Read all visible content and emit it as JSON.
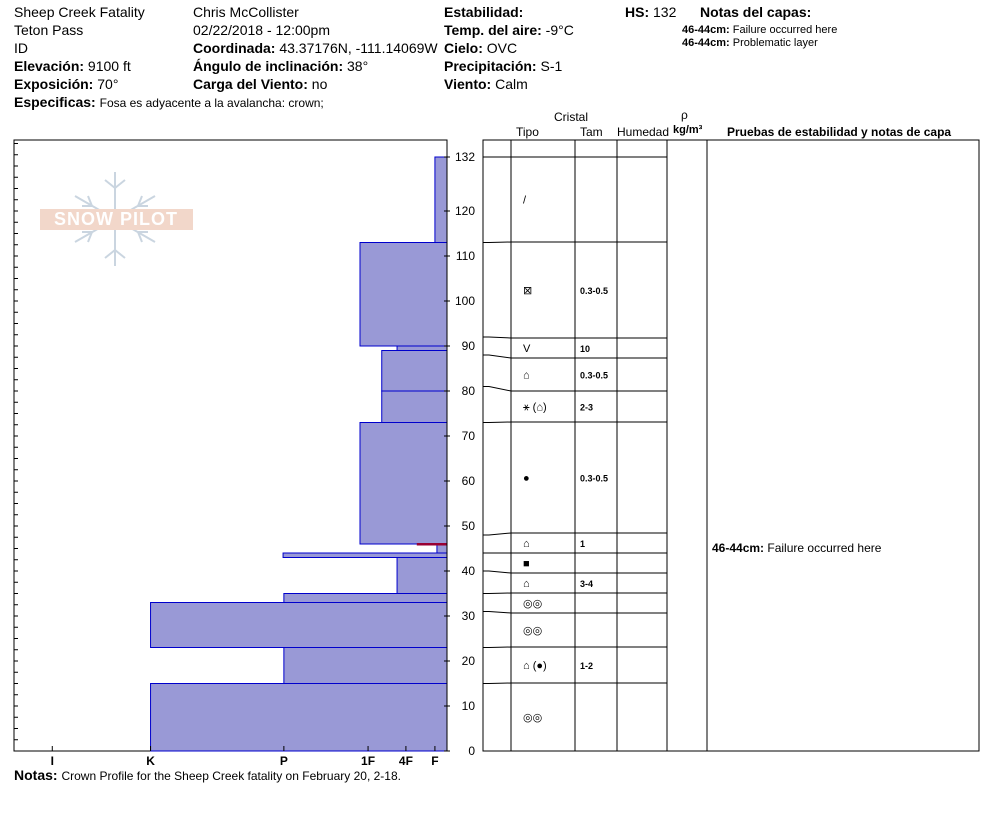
{
  "header": {
    "title": "Sheep Creek Fatality",
    "location": "Teton Pass",
    "state": "ID",
    "elevation_label": "Elevación:",
    "elevation": "9100 ft",
    "aspect_label": "Exposición:",
    "aspect": "70°",
    "specifics_label": "Especificas:",
    "specifics": "Fosa es adyacente a la avalancha: crown;",
    "observer": "Chris McCollister",
    "datetime": "02/22/2018 - 12:00pm",
    "coord_label": "Coordinada:",
    "coord": "43.37176N, -111.14069W",
    "slope_label": "Ángulo de inclinación:",
    "slope": "38°",
    "wind_load_label": "Carga del Viento:",
    "wind_load": "no",
    "stability_label": "Estabilidad:",
    "stability": "",
    "air_temp_label": "Temp. del aire:",
    "air_temp": "-9°C",
    "sky_label": "Cielo:",
    "sky": "OVC",
    "precip_label": "Precipitación:",
    "precip": "S-1",
    "wind_label": "Viento:",
    "wind": "Calm",
    "hs_label": "HS:",
    "hs": "132",
    "layer_notes_label": "Notas del capas:",
    "layer_notes": [
      {
        "range": "46-44cm:",
        "text": "Failure occurred here"
      },
      {
        "range": "46-44cm:",
        "text": "Problematic layer"
      }
    ]
  },
  "logo_text": "SNOW PILOT",
  "columns": {
    "crystal": "Cristal",
    "type": "Tipo",
    "size": "Tam",
    "moisture": "Humedad",
    "density_symbol": "ρ",
    "density_unit": "kg/m³",
    "tests": "Pruebas de estabilidad y notas de capa"
  },
  "test_notes": [
    {
      "range": "46-44cm:",
      "text": "Failure occurred here",
      "depth": 45
    }
  ],
  "notes_label": "Notas:",
  "notes": "Crown Profile for the Sheep Creek fatality on February 20, 2-18.",
  "colors": {
    "bar_fill": "#9999d6",
    "bar_stroke": "#0000cc",
    "failure_line": "#990033"
  },
  "chart_data": {
    "type": "bar",
    "orientation": "horizontal",
    "title": "",
    "xlabel": "",
    "ylabel": "",
    "y_unit": "cm",
    "ylim": [
      0,
      136
    ],
    "y_ticks": [
      0,
      10,
      20,
      30,
      40,
      50,
      60,
      70,
      80,
      90,
      100,
      110,
      120,
      132
    ],
    "x_categories": [
      "I",
      "K",
      "P",
      "1F",
      "4F",
      "F"
    ],
    "x_positions": [
      9.5,
      33.9,
      67.0,
      87.9,
      97.3,
      104.5
    ],
    "x_max": 107.5,
    "hand_hardness_layers": [
      {
        "bottom": 0,
        "top": 15,
        "hardness": 33.9
      },
      {
        "bottom": 15,
        "top": 23,
        "hardness": 67.0
      },
      {
        "bottom": 23,
        "top": 33,
        "hardness": 33.9
      },
      {
        "bottom": 33,
        "top": 35,
        "hardness": 67.0
      },
      {
        "bottom": 35,
        "top": 43,
        "hardness": 95.1
      },
      {
        "bottom": 43,
        "top": 44,
        "hardness": 66.8
      },
      {
        "bottom": 44,
        "top": 46,
        "hardness": 105.0
      },
      {
        "bottom": 46,
        "top": 73,
        "hardness": 85.9
      },
      {
        "bottom": 73,
        "top": 80,
        "hardness": 91.3
      },
      {
        "bottom": 80,
        "top": 89,
        "hardness": 91.3
      },
      {
        "bottom": 89,
        "top": 90,
        "hardness": 95.1
      },
      {
        "bottom": 90,
        "top": 113,
        "hardness": 85.9
      },
      {
        "bottom": 113,
        "top": 132,
        "hardness": 104.5
      }
    ],
    "failure_layer": [
      44,
      46
    ]
  },
  "layers": [
    {
      "top": 132,
      "bottom": 113,
      "type": "/",
      "size": ""
    },
    {
      "top": 113,
      "bottom": 92,
      "type": "⊠",
      "size": "0.3-0.5"
    },
    {
      "top": 92,
      "bottom": 88,
      "type": "V",
      "size": "10"
    },
    {
      "top": 88,
      "bottom": 81,
      "type": "⌂",
      "size": "0.3-0.5"
    },
    {
      "top": 81,
      "bottom": 73,
      "type": "⚹ (⌂)",
      "size": "2-3"
    },
    {
      "top": 73,
      "bottom": 48,
      "type": "●",
      "size": "0.3-0.5"
    },
    {
      "top": 48,
      "bottom": 44,
      "type": "⌂",
      "size": "1"
    },
    {
      "top": 44,
      "bottom": 40,
      "type": "■",
      "size": ""
    },
    {
      "top": 40,
      "bottom": 35,
      "type": "⌂",
      "size": "3-4"
    },
    {
      "top": 35,
      "bottom": 31,
      "type": "◎◎",
      "size": ""
    },
    {
      "top": 31,
      "bottom": 23,
      "type": "◎◎",
      "size": ""
    },
    {
      "top": 23,
      "bottom": 15,
      "type": "⌂ (●)",
      "size": "1-2"
    },
    {
      "top": 15,
      "bottom": 0,
      "type": "◎◎",
      "size": ""
    }
  ]
}
